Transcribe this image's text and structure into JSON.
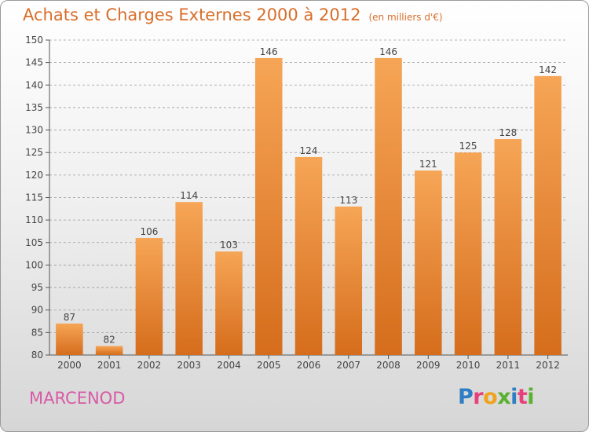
{
  "title": "Achats et Charges Externes 2000 à 2012",
  "unit": "(en milliers d'€)",
  "commune": "MARCENOD",
  "logo": {
    "text": "Proxiti",
    "letters": [
      "P",
      "r",
      "o",
      "x",
      "i",
      "t",
      "i"
    ],
    "colors": [
      "#2f7dc4",
      "#e8407a",
      "#f0a21c",
      "#5ab030",
      "#2f7dc4",
      "#e8407a",
      "#5ab030"
    ]
  },
  "colors": {
    "bar_top": "#f6a556",
    "bar_bottom": "#d56d1c",
    "axis": "#555555",
    "grid": "#9a9a9a",
    "title": "#d86e2a",
    "commune": "#d85aa6"
  },
  "chart_data": {
    "type": "bar",
    "title": "Achats et Charges Externes 2000 à 2012",
    "subtitle": "(en milliers d'€)",
    "xlabel": "",
    "ylabel": "",
    "categories": [
      "2000",
      "2001",
      "2002",
      "2003",
      "2004",
      "2005",
      "2006",
      "2007",
      "2008",
      "2009",
      "2010",
      "2011",
      "2012"
    ],
    "values": [
      87,
      82,
      106,
      114,
      103,
      146,
      124,
      113,
      146,
      121,
      125,
      128,
      142
    ],
    "ylim": [
      80,
      150
    ],
    "yticks": [
      80,
      85,
      90,
      95,
      100,
      105,
      110,
      115,
      120,
      125,
      130,
      135,
      140,
      145,
      150
    ],
    "grid": "horizontal dashed",
    "legend": "none"
  }
}
